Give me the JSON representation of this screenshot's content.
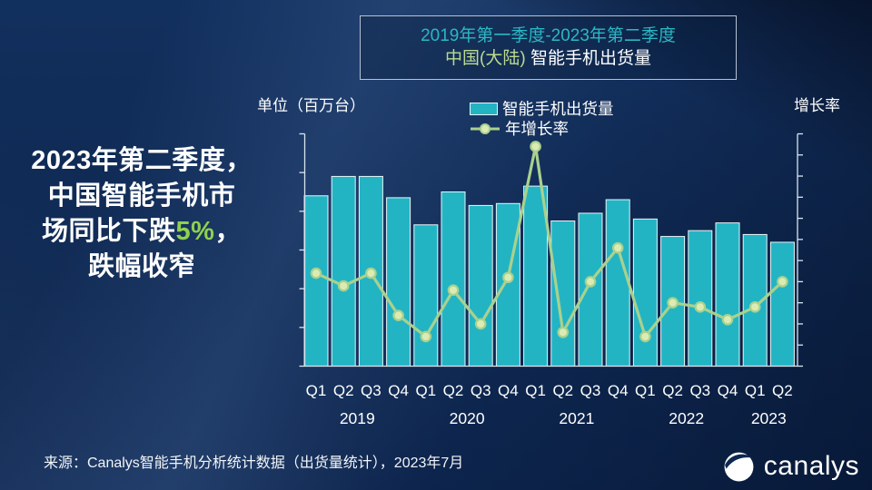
{
  "colors": {
    "bar_teal": "#23b4c4",
    "line_green": "#a9d18e",
    "marker_fill": "#dcebb4",
    "highlight_green": "#8fd14f",
    "title_teal": "#2bb7c4",
    "region_green": "#bada8e",
    "axis_line": "#d8e6ef",
    "bg_navy": "#0d2750"
  },
  "slide": {
    "headline": {
      "line1": "2023年第二季度，",
      "line2": "中国智能手机市",
      "line3_prefix": "场同比下跌",
      "line3_highlight": "5%",
      "line3_suffix": "，",
      "line4": "跌幅收窄"
    },
    "title_box": {
      "line1": "2019年第一季度-2023年第二季度",
      "line2_region": "中国(大陆)",
      "line2_rest": " 智能手机出货量"
    },
    "source": "来源：Canalys智能手机分析统计数据（出货量统计），2023年7月",
    "logo_text": "canalys"
  },
  "chart_data": {
    "type": "bar+line combo",
    "title": "中国(大陆)智能手机出货量 2019Q1-2023Q2",
    "left_axis_label": "单位（百万台）",
    "right_axis_label": "增长率",
    "legend": [
      "智能手机出货量",
      "年增长率"
    ],
    "legend_position": "top",
    "grid": false,
    "categories": [
      "Q1",
      "Q2",
      "Q3",
      "Q4",
      "Q1",
      "Q2",
      "Q3",
      "Q4",
      "Q1",
      "Q2",
      "Q3",
      "Q4",
      "Q1",
      "Q2",
      "Q3",
      "Q4",
      "Q1",
      "Q2"
    ],
    "year_groups": [
      {
        "label": "2019",
        "count": 4
      },
      {
        "label": "2020",
        "count": 4
      },
      {
        "label": "2021",
        "count": 4
      },
      {
        "label": "2022",
        "count": 4
      },
      {
        "label": "2023",
        "count": 2
      }
    ],
    "series": [
      {
        "name": "智能手机出货量",
        "type": "bar",
        "axis": "left",
        "unit": "百万台",
        "values": [
          88,
          98,
          98,
          87,
          73,
          90,
          83,
          84,
          93,
          75,
          79,
          86,
          76,
          67,
          70,
          74,
          68,
          64
        ]
      },
      {
        "name": "年增长率",
        "type": "line",
        "axis": "right",
        "unit": "%",
        "values": [
          -3,
          -6,
          -3,
          -13,
          -18,
          -7,
          -15,
          -4,
          27,
          -17,
          -5,
          3,
          -18,
          -10,
          -11,
          -14,
          -11,
          -5
        ]
      }
    ],
    "left_axis": {
      "min": 0,
      "max": 120,
      "step": 20
    },
    "right_axis": {
      "min": -25,
      "max": 30,
      "step": 5,
      "suffix": "%"
    }
  }
}
